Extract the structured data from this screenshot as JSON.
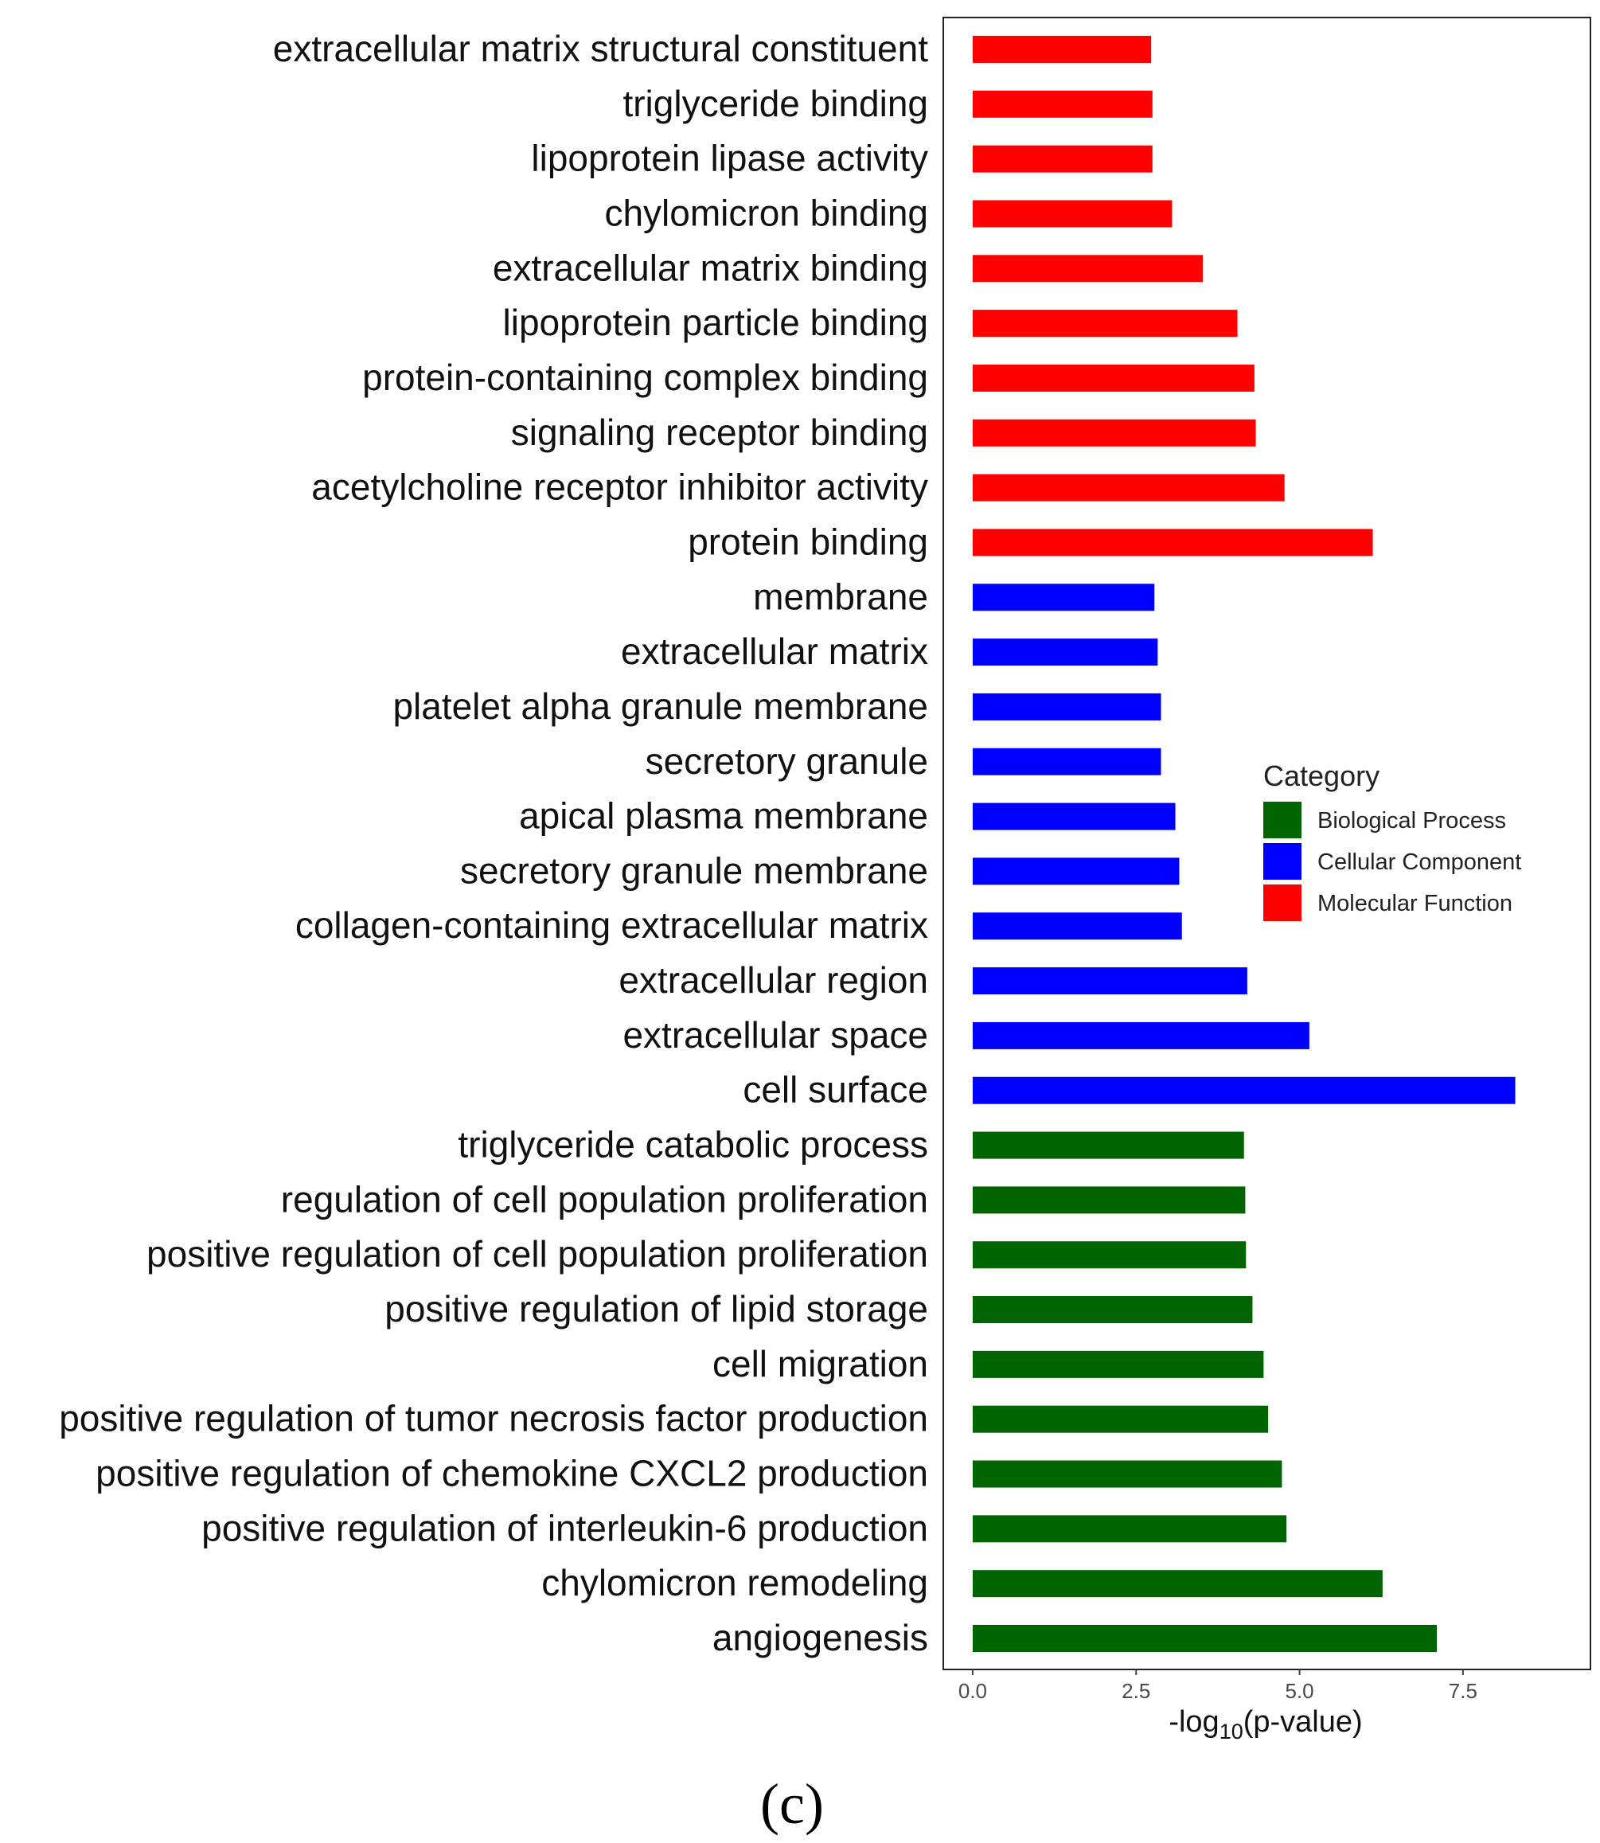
{
  "chart_data": {
    "type": "bar",
    "orientation": "horizontal",
    "xlabel": "-log",
    "xlabel_subscript": "10",
    "xlabel_suffix": "(p-value)",
    "xlim": [
      -0.45,
      9.45
    ],
    "xticks": [
      0.0,
      2.5,
      5.0,
      7.5
    ],
    "xtick_labels": [
      "0.0",
      "2.5",
      "5.0",
      "7.5"
    ],
    "grid": false,
    "legend": {
      "title": "Category",
      "position": "right-inside",
      "entries": [
        {
          "name": "Biological Process",
          "color": "#006400"
        },
        {
          "name": "Cellular Component",
          "color": "#0000ff"
        },
        {
          "name": "Molecular Function",
          "color": "#ff0000"
        }
      ]
    },
    "bars": [
      {
        "label": "extracellular matrix structural constituent",
        "value": 2.73,
        "category": "Molecular Function"
      },
      {
        "label": "triglyceride binding",
        "value": 2.75,
        "category": "Molecular Function"
      },
      {
        "label": "lipoprotein lipase activity",
        "value": 2.75,
        "category": "Molecular Function"
      },
      {
        "label": "chylomicron binding",
        "value": 3.05,
        "category": "Molecular Function"
      },
      {
        "label": "extracellular matrix binding",
        "value": 3.52,
        "category": "Molecular Function"
      },
      {
        "label": "lipoprotein particle binding",
        "value": 4.05,
        "category": "Molecular Function"
      },
      {
        "label": "protein-containing complex binding",
        "value": 4.31,
        "category": "Molecular Function"
      },
      {
        "label": "signaling receptor binding",
        "value": 4.33,
        "category": "Molecular Function"
      },
      {
        "label": "acetylcholine receptor inhibitor activity",
        "value": 4.77,
        "category": "Molecular Function"
      },
      {
        "label": "protein binding",
        "value": 6.12,
        "category": "Molecular Function"
      },
      {
        "label": "membrane",
        "value": 2.78,
        "category": "Cellular Component"
      },
      {
        "label": "extracellular matrix",
        "value": 2.83,
        "category": "Cellular Component"
      },
      {
        "label": "platelet alpha granule membrane",
        "value": 2.88,
        "category": "Cellular Component"
      },
      {
        "label": "secretory granule",
        "value": 2.88,
        "category": "Cellular Component"
      },
      {
        "label": "apical plasma membrane",
        "value": 3.1,
        "category": "Cellular Component"
      },
      {
        "label": "secretory granule membrane",
        "value": 3.16,
        "category": "Cellular Component"
      },
      {
        "label": "collagen-containing extracellular matrix",
        "value": 3.2,
        "category": "Cellular Component"
      },
      {
        "label": "extracellular region",
        "value": 4.2,
        "category": "Cellular Component"
      },
      {
        "label": "extracellular space",
        "value": 5.15,
        "category": "Cellular Component"
      },
      {
        "label": "cell surface",
        "value": 8.3,
        "category": "Cellular Component"
      },
      {
        "label": "triglyceride catabolic process",
        "value": 4.15,
        "category": "Biological Process"
      },
      {
        "label": "regulation of cell population proliferation",
        "value": 4.17,
        "category": "Biological Process"
      },
      {
        "label": "positive regulation of cell population proliferation",
        "value": 4.18,
        "category": "Biological Process"
      },
      {
        "label": "positive regulation of lipid storage",
        "value": 4.28,
        "category": "Biological Process"
      },
      {
        "label": "cell migration",
        "value": 4.45,
        "category": "Biological Process"
      },
      {
        "label": "positive regulation of tumor necrosis factor production",
        "value": 4.52,
        "category": "Biological Process"
      },
      {
        "label": "positive regulation of chemokine CXCL2 production",
        "value": 4.73,
        "category": "Biological Process"
      },
      {
        "label": "positive regulation of interleukin-6 production",
        "value": 4.8,
        "category": "Biological Process"
      },
      {
        "label": "chylomicron remodeling",
        "value": 6.27,
        "category": "Biological Process"
      },
      {
        "label": "angiogenesis",
        "value": 7.1,
        "category": "Biological Process"
      }
    ]
  },
  "panel_label": "(c)"
}
